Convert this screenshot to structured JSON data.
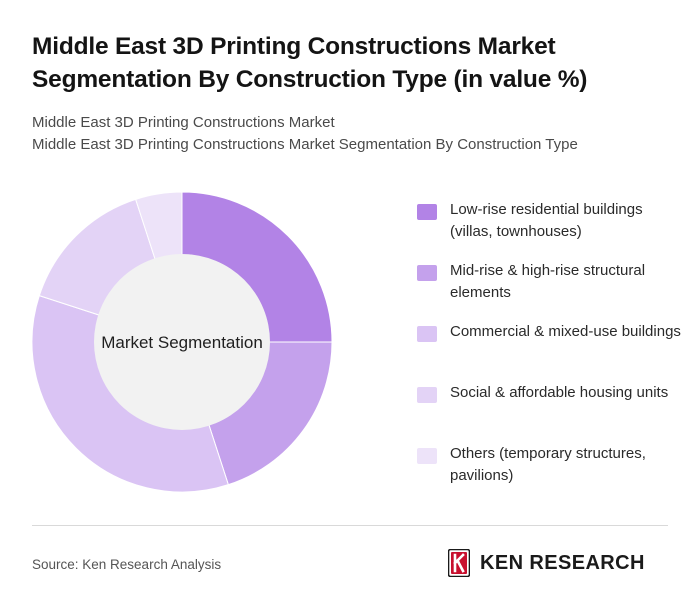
{
  "title": "Middle East 3D Printing Constructions Market Segmentation By Construction Type (in value %)",
  "subtitle_lines": [
    "Middle East 3D Printing Constructions Market",
    "Middle East 3D Printing Constructions Market Segmentation By Construction Type"
  ],
  "chart_data": {
    "type": "pie",
    "variant": "donut",
    "center_label": "Market Segmentation",
    "categories": [
      "Low-rise residential buildings (villas, townhouses)",
      "Mid-rise & high-rise structural elements",
      "Commercial & mixed-use buildings",
      "Social & affordable housing units",
      "Others (temporary structures, pavilions)"
    ],
    "values": [
      25,
      20,
      35,
      15,
      5
    ],
    "colors": [
      "#b283e6",
      "#c4a1ec",
      "#dac4f4",
      "#e3d3f6",
      "#ede3f9"
    ],
    "center_fill": "#f2f2f2",
    "legend_position": "right"
  },
  "footer": {
    "source": "Source: Ken Research Analysis",
    "brand": "KEN RESEARCH"
  }
}
